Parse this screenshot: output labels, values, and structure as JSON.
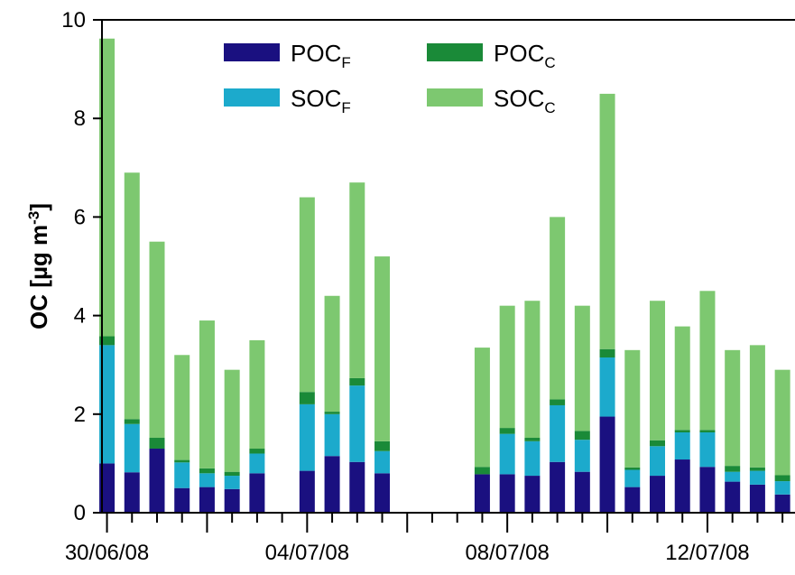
{
  "chart_data": {
    "type": "bar",
    "stacked": true,
    "ylabel_main": "OC [µg m",
    "ylabel_sup": "-3",
    "ylabel_end": "]",
    "xlabel": "",
    "ylim": [
      0,
      10
    ],
    "yticks": [
      0,
      2,
      4,
      6,
      8,
      10
    ],
    "xtick_labels": [
      "30/06/08",
      "04/07/08",
      "08/07/08",
      "12/07/08"
    ],
    "xtick_label_days": [
      0,
      4,
      8,
      12
    ],
    "day_range": [
      -0.1,
      13.75
    ],
    "grid": false,
    "legend_position": "top",
    "series": [
      {
        "name": "POC",
        "subscript": "F",
        "color": "#1a1080"
      },
      {
        "name": "SOC",
        "subscript": "F",
        "color": "#1caacc"
      },
      {
        "name": "POC",
        "subscript": "C",
        "color": "#1a8a38"
      },
      {
        "name": "SOC",
        "subscript": "C",
        "color": "#7dc870"
      }
    ],
    "bars": [
      {
        "day": 0.0,
        "values": [
          1.0,
          2.4,
          0.18,
          6.04
        ]
      },
      {
        "day": 0.5,
        "values": [
          0.82,
          0.98,
          0.1,
          5.0
        ]
      },
      {
        "day": 1.0,
        "values": [
          1.3,
          0.0,
          0.22,
          3.98
        ]
      },
      {
        "day": 1.5,
        "values": [
          0.5,
          0.52,
          0.05,
          2.13
        ]
      },
      {
        "day": 2.0,
        "values": [
          0.52,
          0.28,
          0.1,
          3.0
        ]
      },
      {
        "day": 2.5,
        "values": [
          0.48,
          0.27,
          0.08,
          2.07
        ]
      },
      {
        "day": 3.0,
        "values": [
          0.8,
          0.4,
          0.1,
          2.2
        ]
      },
      {
        "day": 4.0,
        "values": [
          0.85,
          1.35,
          0.25,
          3.95
        ]
      },
      {
        "day": 4.5,
        "values": [
          1.15,
          0.85,
          0.05,
          2.35
        ]
      },
      {
        "day": 5.0,
        "values": [
          1.03,
          1.55,
          0.15,
          3.97
        ]
      },
      {
        "day": 5.5,
        "values": [
          0.8,
          0.45,
          0.2,
          3.75
        ]
      },
      {
        "day": 7.5,
        "values": [
          0.78,
          0.0,
          0.15,
          2.42
        ]
      },
      {
        "day": 8.0,
        "values": [
          0.78,
          0.82,
          0.12,
          2.48
        ]
      },
      {
        "day": 8.5,
        "values": [
          0.75,
          0.7,
          0.07,
          2.78
        ]
      },
      {
        "day": 9.0,
        "values": [
          1.03,
          1.15,
          0.12,
          3.7
        ]
      },
      {
        "day": 9.5,
        "values": [
          0.83,
          0.65,
          0.18,
          2.54
        ]
      },
      {
        "day": 10.0,
        "values": [
          1.95,
          1.2,
          0.17,
          5.18
        ]
      },
      {
        "day": 10.5,
        "values": [
          0.52,
          0.35,
          0.05,
          2.38
        ]
      },
      {
        "day": 11.0,
        "values": [
          0.75,
          0.6,
          0.12,
          2.83
        ]
      },
      {
        "day": 11.5,
        "values": [
          1.08,
          0.55,
          0.05,
          2.1
        ]
      },
      {
        "day": 12.0,
        "values": [
          0.93,
          0.7,
          0.05,
          2.82
        ]
      },
      {
        "day": 12.5,
        "values": [
          0.63,
          0.2,
          0.12,
          2.35
        ]
      },
      {
        "day": 13.0,
        "values": [
          0.57,
          0.28,
          0.07,
          2.48
        ]
      },
      {
        "day": 13.5,
        "values": [
          0.37,
          0.27,
          0.12,
          2.14
        ]
      }
    ]
  }
}
